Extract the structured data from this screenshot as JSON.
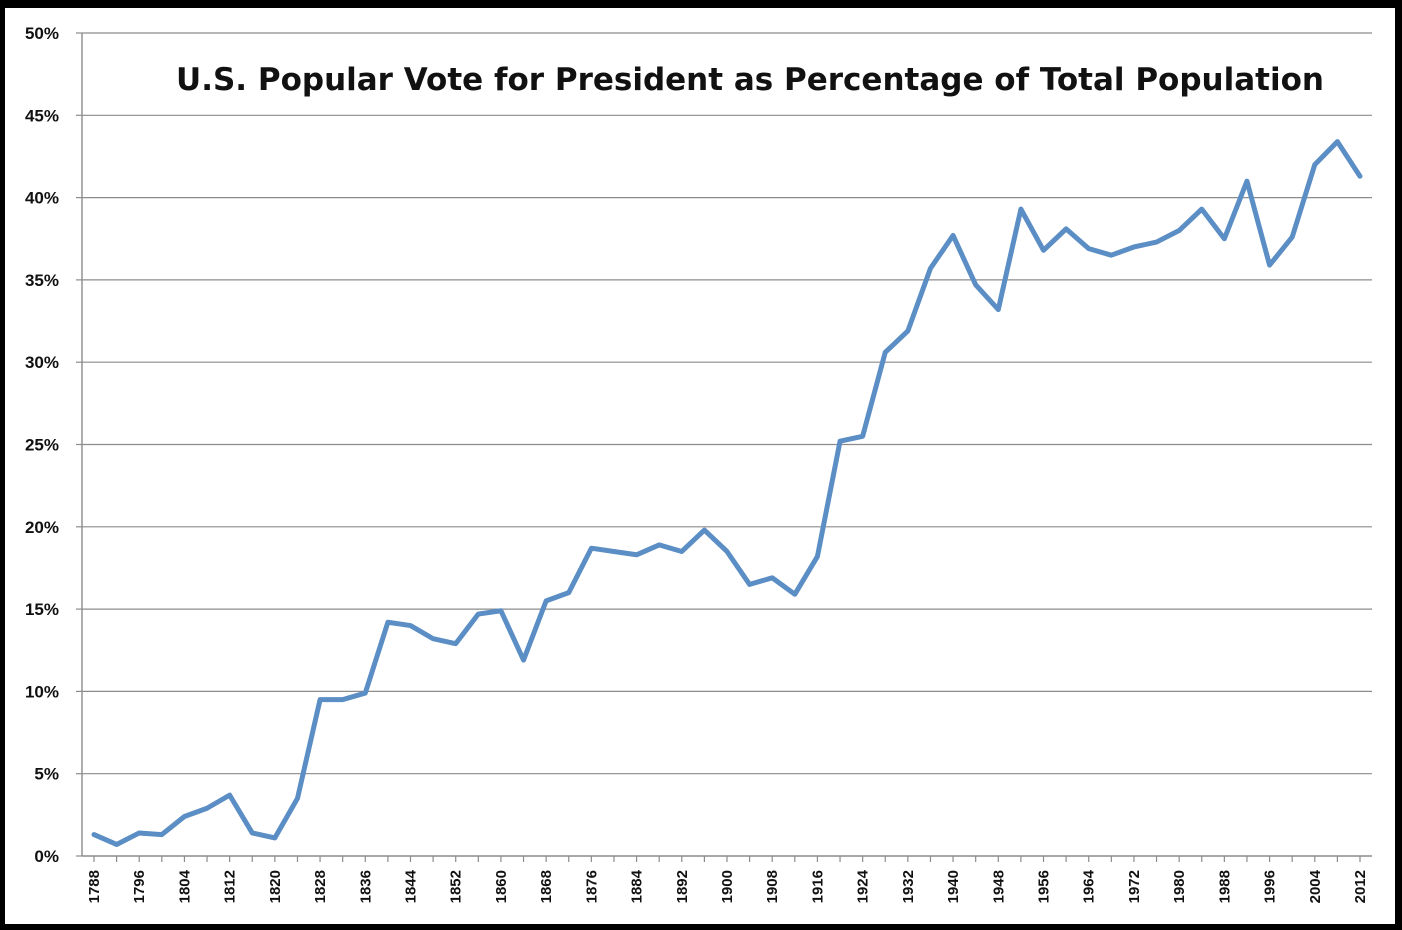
{
  "chart_data": {
    "type": "line",
    "title": "U.S. Popular Vote for President as Percentage of Total Population",
    "xlabel": "",
    "ylabel": "",
    "ylim": [
      0,
      50
    ],
    "y_ticks": [
      "0%",
      "5%",
      "10%",
      "15%",
      "20%",
      "25%",
      "30%",
      "35%",
      "40%",
      "45%",
      "50%"
    ],
    "grid": true,
    "legend": "none",
    "x_tick_labels": [
      "1788",
      "1796",
      "1804",
      "1812",
      "1820",
      "1828",
      "1836",
      "1844",
      "1852",
      "1860",
      "1868",
      "1876",
      "1884",
      "1892",
      "1900",
      "1908",
      "1916",
      "1924",
      "1932",
      "1940",
      "1948",
      "1956",
      "1964",
      "1972",
      "1980",
      "1988",
      "1996",
      "2004",
      "2012"
    ],
    "x": [
      1788,
      1792,
      1796,
      1800,
      1804,
      1808,
      1812,
      1816,
      1820,
      1824,
      1828,
      1832,
      1836,
      1840,
      1844,
      1848,
      1852,
      1856,
      1860,
      1864,
      1868,
      1872,
      1876,
      1880,
      1884,
      1888,
      1892,
      1896,
      1900,
      1904,
      1908,
      1912,
      1916,
      1920,
      1924,
      1928,
      1932,
      1936,
      1940,
      1944,
      1948,
      1952,
      1956,
      1960,
      1964,
      1968,
      1972,
      1976,
      1980,
      1984,
      1988,
      1992,
      1996,
      2000,
      2004,
      2008,
      2012
    ],
    "series": [
      {
        "color": "#5b8ec4",
        "values": [
          1.3,
          0.7,
          1.4,
          1.3,
          2.4,
          2.9,
          3.7,
          1.4,
          1.1,
          3.5,
          9.5,
          9.5,
          9.9,
          14.2,
          14.0,
          13.2,
          12.9,
          14.7,
          14.9,
          11.9,
          15.5,
          16.0,
          18.7,
          18.5,
          18.3,
          18.9,
          18.5,
          19.8,
          18.5,
          16.5,
          16.9,
          15.9,
          18.2,
          25.2,
          25.5,
          30.6,
          31.9,
          35.7,
          37.7,
          34.7,
          33.2,
          39.3,
          36.8,
          38.1,
          36.9,
          36.5,
          37.0,
          37.3,
          38.0,
          39.3,
          37.5,
          41.0,
          35.9,
          37.6,
          42.0,
          43.4,
          41.3
        ]
      }
    ]
  }
}
